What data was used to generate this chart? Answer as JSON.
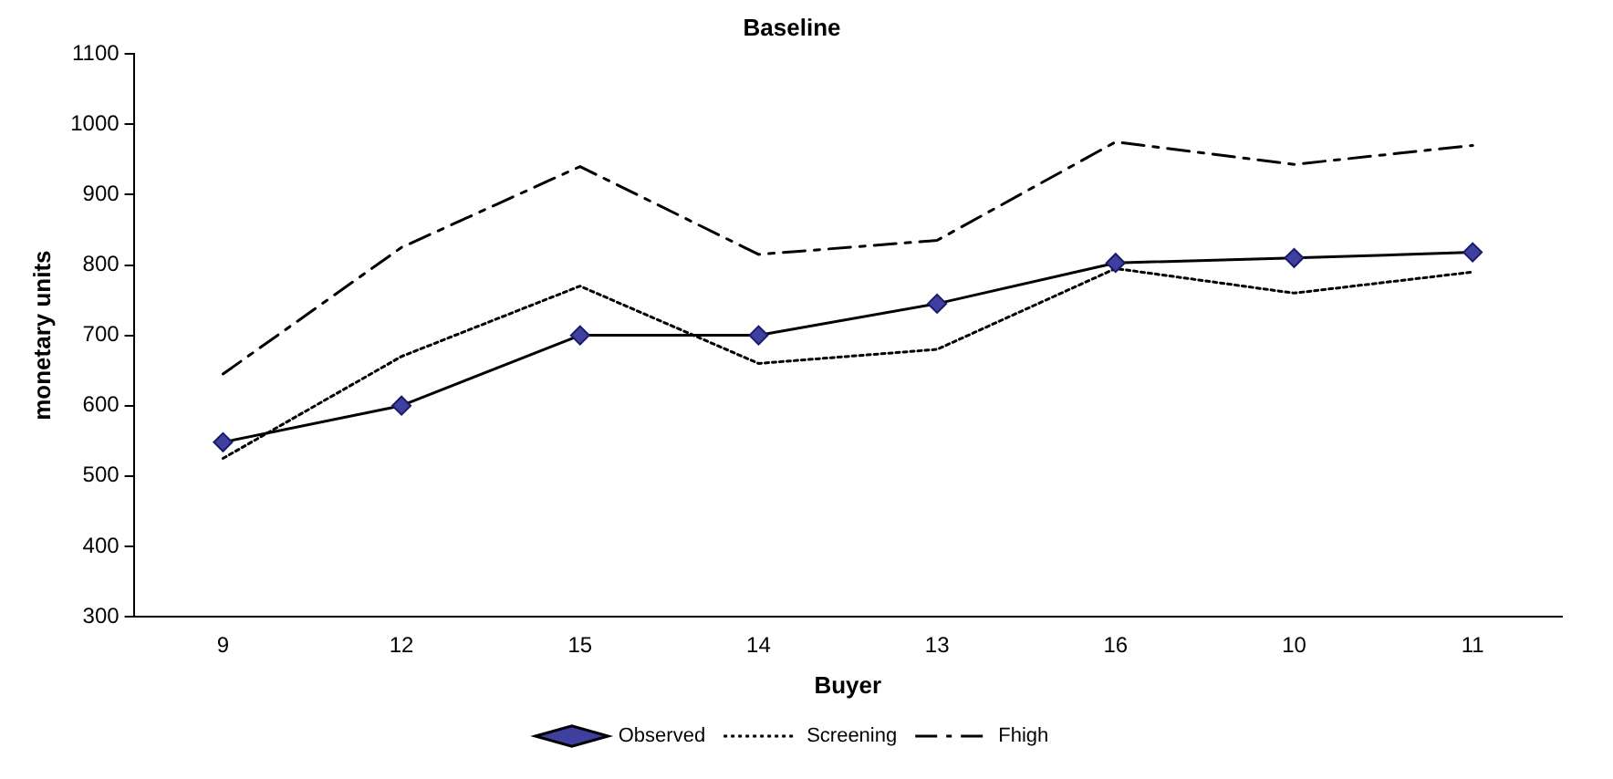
{
  "chart_data": {
    "type": "line",
    "title": "Baseline",
    "xlabel": "Buyer",
    "ylabel": "monetary units",
    "categories": [
      "9",
      "12",
      "15",
      "14",
      "13",
      "16",
      "10",
      "11"
    ],
    "series": [
      {
        "name": "Observed",
        "color": "#000000",
        "marker": "diamond",
        "line_style": "solid",
        "values": [
          548,
          600,
          700,
          700,
          745,
          803,
          810,
          818
        ]
      },
      {
        "name": "Screening",
        "color": "#000000",
        "marker": "none",
        "line_style": "dotted",
        "values": [
          525,
          670,
          770,
          660,
          680,
          795,
          760,
          790
        ]
      },
      {
        "name": "Fhigh",
        "color": "#000000",
        "marker": "none",
        "line_style": "dashed",
        "values": [
          645,
          825,
          940,
          815,
          835,
          975,
          943,
          970
        ]
      }
    ],
    "ylim": [
      300,
      1100
    ],
    "yticks": [
      300,
      400,
      500,
      600,
      700,
      800,
      900,
      1000,
      1100
    ],
    "grid": false,
    "legend": "bottom"
  }
}
